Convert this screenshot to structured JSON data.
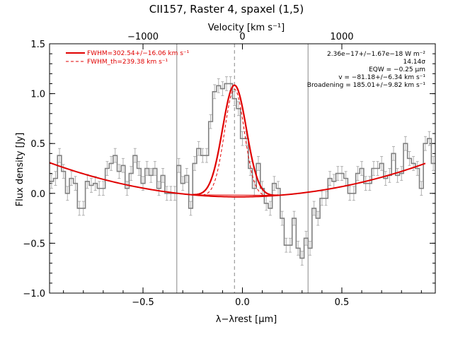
{
  "chart_data": {
    "type": "line",
    "title": "CII157, Raster 4, spaxel (1,5)",
    "xlabel": "λ−λrest [μm]",
    "ylabel": "Flux density [Jy]",
    "top_axis_label": "Velocity [km s⁻¹]",
    "xlim": [
      -0.97,
      0.97
    ],
    "ylim": [
      -1.0,
      1.5
    ],
    "x_ticks": [
      -0.5,
      0.0,
      0.5
    ],
    "x_tick_labels": [
      "−0.5",
      "0.0",
      "0.5"
    ],
    "y_ticks": [
      -1.0,
      -0.5,
      0.0,
      0.5,
      1.0,
      1.5
    ],
    "y_tick_labels": [
      "−1.0",
      "−0.5",
      "0.0",
      "0.5",
      "1.0",
      "1.5"
    ],
    "top_ticks_x": [
      -0.5,
      0.0,
      0.5
    ],
    "top_tick_labels": [
      "−1000",
      "0",
      "1000"
    ],
    "vertical_lines": [
      -0.33,
      0.33
    ],
    "center_dashed_x": -0.04,
    "legend": {
      "placement": "top-left",
      "entries": [
        {
          "label": "FWHM=302.54+/−16.06 km s⁻¹",
          "style": "solid",
          "color": "#e00000"
        },
        {
          "label": "FWHM_th=239.38 km s⁻¹",
          "style": "dashed",
          "color": "#e00000"
        }
      ]
    },
    "annotations": [
      "2.36e−17+/−1.67e−18 W m⁻²",
      "14.14σ",
      "EQW = −0.25 μm",
      "v = −81.18+/−6.34 km s⁻¹",
      "Broadening = 185.01+/−9.82 km s⁻¹"
    ],
    "series": [
      {
        "kind": "histogram",
        "color": "#808080",
        "x": [
          -0.96,
          -0.94,
          -0.92,
          -0.9,
          -0.88,
          -0.86,
          -0.84,
          -0.82,
          -0.8,
          -0.78,
          -0.76,
          -0.74,
          -0.72,
          -0.7,
          -0.68,
          -0.66,
          -0.64,
          -0.62,
          -0.6,
          -0.58,
          -0.56,
          -0.54,
          -0.52,
          -0.5,
          -0.48,
          -0.46,
          -0.44,
          -0.42,
          -0.4,
          -0.38,
          -0.36,
          -0.34,
          -0.32,
          -0.3,
          -0.28,
          -0.26,
          -0.24,
          -0.22,
          -0.2,
          -0.18,
          -0.16,
          -0.14,
          -0.12,
          -0.1,
          -0.08,
          -0.06,
          -0.04,
          -0.02,
          0.0,
          0.02,
          0.04,
          0.06,
          0.08,
          0.1,
          0.12,
          0.14,
          0.16,
          0.18,
          0.2,
          0.22,
          0.24,
          0.26,
          0.28,
          0.3,
          0.32,
          0.34,
          0.36,
          0.38,
          0.4,
          0.42,
          0.44,
          0.46,
          0.48,
          0.5,
          0.52,
          0.54,
          0.56,
          0.58,
          0.6,
          0.62,
          0.64,
          0.66,
          0.68,
          0.7,
          0.72,
          0.74,
          0.76,
          0.78,
          0.8,
          0.82,
          0.84,
          0.86,
          0.88,
          0.9,
          0.92,
          0.94,
          0.96
        ],
        "values": [
          0.12,
          0.15,
          0.38,
          0.22,
          0.0,
          0.15,
          0.1,
          -0.15,
          -0.15,
          0.12,
          0.08,
          0.1,
          0.05,
          0.05,
          0.25,
          0.3,
          0.38,
          0.22,
          0.28,
          0.05,
          0.2,
          0.38,
          0.25,
          0.1,
          0.25,
          0.18,
          0.25,
          0.05,
          0.18,
          0.0,
          0.0,
          0.0,
          0.28,
          0.1,
          0.18,
          -0.15,
          0.3,
          0.45,
          0.38,
          0.38,
          0.72,
          1.02,
          1.08,
          1.05,
          1.1,
          1.1,
          0.95,
          0.85,
          0.55,
          0.55,
          0.25,
          0.05,
          0.3,
          0.05,
          -0.1,
          -0.15,
          0.1,
          0.05,
          -0.25,
          -0.52,
          -0.52,
          -0.25,
          -0.55,
          -0.65,
          -0.45,
          -0.55,
          -0.15,
          -0.25,
          -0.05,
          -0.05,
          0.15,
          0.12,
          0.2,
          0.2,
          0.15,
          0.0,
          0.0,
          0.2,
          0.25,
          0.1,
          0.1,
          0.25,
          0.25,
          0.3,
          0.15,
          0.18,
          0.4,
          0.18,
          0.2,
          0.5,
          0.35,
          0.3,
          0.25,
          0.05,
          0.5,
          0.55,
          0.3
        ]
      },
      {
        "kind": "gaussian_fit",
        "name": "FWHM=302.54+/−16.06 km s⁻¹",
        "color": "#e00000",
        "center": -0.04,
        "amplitude": 1.12,
        "sigma": 0.06,
        "extent": [
          -0.25,
          0.18
        ]
      },
      {
        "kind": "gaussian_thermal",
        "name": "FWHM_th=239.38 km s⁻¹",
        "color": "#e00000",
        "center": -0.04,
        "amplitude": 1.08,
        "sigma": 0.05,
        "extent": [
          -0.25,
          0.18
        ]
      },
      {
        "kind": "continuum",
        "color": "#e00000",
        "shape": "quadratic",
        "vertex_x": -0.02,
        "vertex_y": -0.035,
        "curvature": 0.38
      }
    ]
  }
}
